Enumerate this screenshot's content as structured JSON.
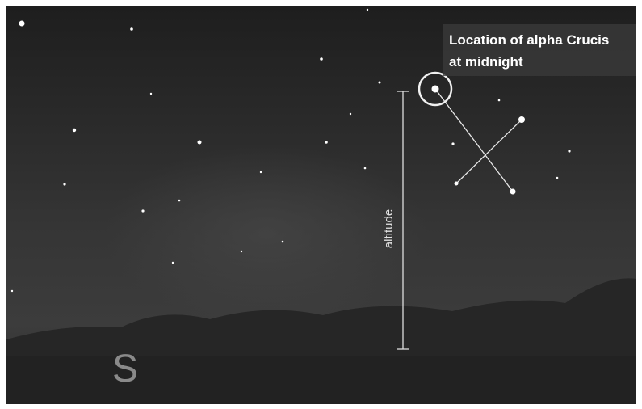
{
  "annotation": {
    "lines": [
      "Location of alpha Crucis",
      "at midnight"
    ]
  },
  "altitude_label": "altitude",
  "direction": "S"
}
